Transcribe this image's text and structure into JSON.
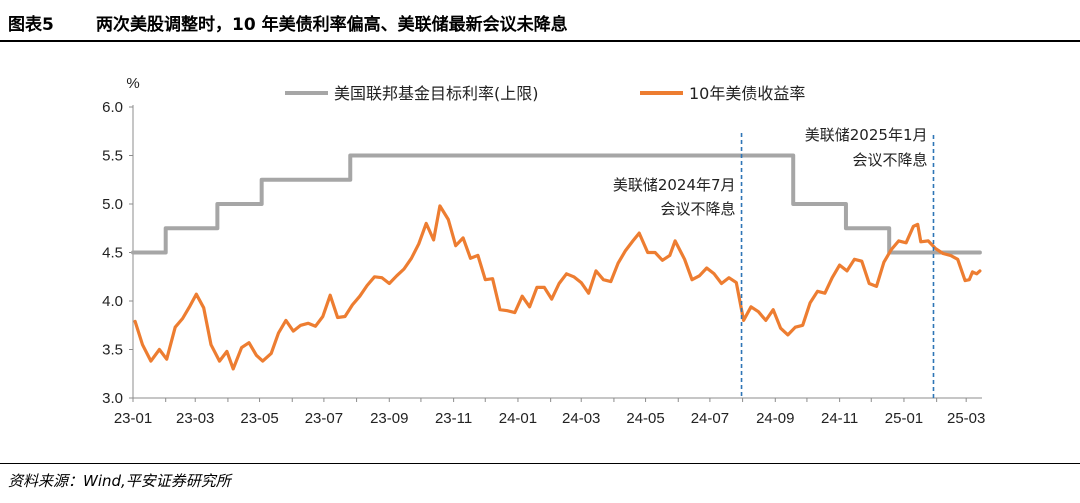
{
  "figure": {
    "label": "图表5",
    "title": "两次美股调整时，10 年美债利率偏高、美联储最新会议未降息",
    "source": "资料来源：Wind,平安证券研究所"
  },
  "chart_data": {
    "type": "line",
    "yunit": "%",
    "ylim": [
      3.0,
      6.0
    ],
    "yticks": [
      "3.0",
      "3.5",
      "4.0",
      "4.5",
      "5.0",
      "5.5",
      "6.0"
    ],
    "xticks": [
      "23-01",
      "23-03",
      "23-05",
      "23-07",
      "23-09",
      "23-11",
      "24-01",
      "24-03",
      "24-05",
      "24-07",
      "24-09",
      "24-11",
      "25-01",
      "25-03"
    ],
    "grid": false,
    "legend_position": "top",
    "series": [
      {
        "name": "美国联邦基金目标利率(上限)",
        "color": "#A6A6A6",
        "style": "step",
        "points": [
          [
            "2023-01-01",
            4.5
          ],
          [
            "2023-02-01",
            4.75
          ],
          [
            "2023-03-22",
            5.0
          ],
          [
            "2023-05-03",
            5.25
          ],
          [
            "2023-07-26",
            5.5
          ],
          [
            "2024-09-18",
            5.0
          ],
          [
            "2024-11-07",
            4.75
          ],
          [
            "2024-12-18",
            4.5
          ],
          [
            "2025-03-14",
            4.5
          ]
        ]
      },
      {
        "name": "10年美债收益率",
        "color": "#ED7D31",
        "style": "line",
        "points": [
          [
            "2023-01-03",
            3.79
          ],
          [
            "2023-01-10",
            3.55
          ],
          [
            "2023-01-18",
            3.38
          ],
          [
            "2023-01-26",
            3.5
          ],
          [
            "2023-02-02",
            3.4
          ],
          [
            "2023-02-10",
            3.73
          ],
          [
            "2023-02-17",
            3.82
          ],
          [
            "2023-02-24",
            3.95
          ],
          [
            "2023-03-02",
            4.07
          ],
          [
            "2023-03-09",
            3.93
          ],
          [
            "2023-03-16",
            3.55
          ],
          [
            "2023-03-24",
            3.38
          ],
          [
            "2023-03-31",
            3.48
          ],
          [
            "2023-04-06",
            3.3
          ],
          [
            "2023-04-14",
            3.52
          ],
          [
            "2023-04-21",
            3.57
          ],
          [
            "2023-04-28",
            3.44
          ],
          [
            "2023-05-04",
            3.38
          ],
          [
            "2023-05-12",
            3.46
          ],
          [
            "2023-05-19",
            3.67
          ],
          [
            "2023-05-26",
            3.8
          ],
          [
            "2023-06-02",
            3.69
          ],
          [
            "2023-06-09",
            3.75
          ],
          [
            "2023-06-16",
            3.77
          ],
          [
            "2023-06-23",
            3.74
          ],
          [
            "2023-06-30",
            3.84
          ],
          [
            "2023-07-07",
            4.06
          ],
          [
            "2023-07-14",
            3.83
          ],
          [
            "2023-07-21",
            3.84
          ],
          [
            "2023-07-28",
            3.96
          ],
          [
            "2023-08-04",
            4.05
          ],
          [
            "2023-08-11",
            4.16
          ],
          [
            "2023-08-18",
            4.25
          ],
          [
            "2023-08-25",
            4.24
          ],
          [
            "2023-09-01",
            4.18
          ],
          [
            "2023-09-08",
            4.26
          ],
          [
            "2023-09-15",
            4.33
          ],
          [
            "2023-09-22",
            4.44
          ],
          [
            "2023-09-29",
            4.59
          ],
          [
            "2023-10-06",
            4.8
          ],
          [
            "2023-10-13",
            4.63
          ],
          [
            "2023-10-19",
            4.98
          ],
          [
            "2023-10-27",
            4.84
          ],
          [
            "2023-11-03",
            4.57
          ],
          [
            "2023-11-10",
            4.65
          ],
          [
            "2023-11-17",
            4.44
          ],
          [
            "2023-11-24",
            4.47
          ],
          [
            "2023-12-01",
            4.22
          ],
          [
            "2023-12-08",
            4.23
          ],
          [
            "2023-12-15",
            3.91
          ],
          [
            "2023-12-22",
            3.9
          ],
          [
            "2023-12-29",
            3.88
          ],
          [
            "2024-01-05",
            4.05
          ],
          [
            "2024-01-12",
            3.94
          ],
          [
            "2024-01-19",
            4.14
          ],
          [
            "2024-01-26",
            4.14
          ],
          [
            "2024-02-02",
            4.02
          ],
          [
            "2024-02-09",
            4.18
          ],
          [
            "2024-02-16",
            4.28
          ],
          [
            "2024-02-23",
            4.25
          ],
          [
            "2024-03-01",
            4.19
          ],
          [
            "2024-03-08",
            4.08
          ],
          [
            "2024-03-15",
            4.31
          ],
          [
            "2024-03-22",
            4.22
          ],
          [
            "2024-03-29",
            4.2
          ],
          [
            "2024-04-05",
            4.39
          ],
          [
            "2024-04-12",
            4.52
          ],
          [
            "2024-04-19",
            4.62
          ],
          [
            "2024-04-25",
            4.7
          ],
          [
            "2024-05-03",
            4.5
          ],
          [
            "2024-05-10",
            4.5
          ],
          [
            "2024-05-17",
            4.42
          ],
          [
            "2024-05-24",
            4.47
          ],
          [
            "2024-05-29",
            4.62
          ],
          [
            "2024-06-07",
            4.43
          ],
          [
            "2024-06-14",
            4.22
          ],
          [
            "2024-06-21",
            4.26
          ],
          [
            "2024-06-28",
            4.34
          ],
          [
            "2024-07-05",
            4.28
          ],
          [
            "2024-07-12",
            4.18
          ],
          [
            "2024-07-19",
            4.24
          ],
          [
            "2024-07-26",
            4.19
          ],
          [
            "2024-08-02",
            3.8
          ],
          [
            "2024-08-09",
            3.94
          ],
          [
            "2024-08-16",
            3.89
          ],
          [
            "2024-08-23",
            3.8
          ],
          [
            "2024-08-30",
            3.91
          ],
          [
            "2024-09-06",
            3.72
          ],
          [
            "2024-09-13",
            3.65
          ],
          [
            "2024-09-20",
            3.73
          ],
          [
            "2024-09-27",
            3.75
          ],
          [
            "2024-10-04",
            3.98
          ],
          [
            "2024-10-11",
            4.1
          ],
          [
            "2024-10-18",
            4.08
          ],
          [
            "2024-10-25",
            4.24
          ],
          [
            "2024-11-01",
            4.37
          ],
          [
            "2024-11-08",
            4.31
          ],
          [
            "2024-11-15",
            4.43
          ],
          [
            "2024-11-22",
            4.41
          ],
          [
            "2024-11-29",
            4.18
          ],
          [
            "2024-12-06",
            4.15
          ],
          [
            "2024-12-13",
            4.4
          ],
          [
            "2024-12-20",
            4.53
          ],
          [
            "2024-12-27",
            4.62
          ],
          [
            "2025-01-03",
            4.6
          ],
          [
            "2025-01-10",
            4.77
          ],
          [
            "2025-01-14",
            4.79
          ],
          [
            "2025-01-17",
            4.61
          ],
          [
            "2025-01-24",
            4.62
          ],
          [
            "2025-01-31",
            4.54
          ],
          [
            "2025-02-07",
            4.49
          ],
          [
            "2025-02-14",
            4.47
          ],
          [
            "2025-02-21",
            4.43
          ],
          [
            "2025-02-28",
            4.21
          ],
          [
            "2025-03-04",
            4.22
          ],
          [
            "2025-03-07",
            4.3
          ],
          [
            "2025-03-11",
            4.28
          ],
          [
            "2025-03-14",
            4.31
          ]
        ]
      }
    ],
    "annotations": [
      {
        "date": "2024-07-31",
        "lines": [
          "美联储2024年7月",
          "会议不降息"
        ],
        "line_style": "dashed",
        "color": "#2E75B6"
      },
      {
        "date": "2025-01-29",
        "lines": [
          "美联储2025年1月",
          "会议不降息"
        ],
        "line_style": "dashed",
        "color": "#2E75B6"
      }
    ]
  }
}
